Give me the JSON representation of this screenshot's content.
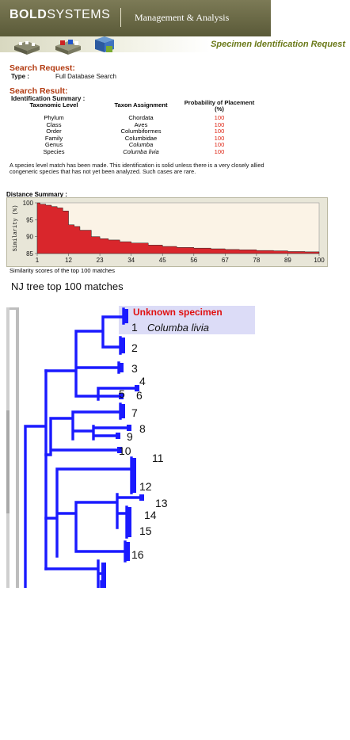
{
  "header": {
    "logo_bold": "BOLD",
    "logo_rest": "SYSTEMS",
    "tagline": "Management & Analysis",
    "request_title": "Specimen Identification Request"
  },
  "search_request": {
    "heading": "Search Request:",
    "type_label": "Type :",
    "type_value": "Full Database Search"
  },
  "search_result": {
    "heading": "Search Result:",
    "summary_label": "Identification Summary :",
    "columns": [
      "Taxonomic Level",
      "Taxon Assignment",
      "Probability of Placement (%)"
    ],
    "rows": [
      {
        "level": "Phylum",
        "taxon": "Chordata",
        "prob": "100"
      },
      {
        "level": "Class",
        "taxon": "Aves",
        "prob": "100"
      },
      {
        "level": "Order",
        "taxon": "Columbiformes",
        "prob": "100"
      },
      {
        "level": "Family",
        "taxon": "Columbidae",
        "prob": "100"
      },
      {
        "level": "Genus",
        "taxon": "Columba",
        "prob": "100"
      },
      {
        "level": "Species",
        "taxon": "Columba livia",
        "prob": "100"
      }
    ],
    "note": "A species level match has been made. This identification is solid unless there is a very closely allied congeneric species that has not yet been analyzed. Such cases are rare."
  },
  "distance_summary": {
    "title": "Distance Summary :",
    "caption": "Similarity scores of the top 100 matches"
  },
  "chart_data": {
    "type": "area",
    "ylabel": "Similarity (%)",
    "ylim": [
      85,
      100
    ],
    "yticks": [
      "100",
      "95",
      "90",
      "85"
    ],
    "xticks": [
      "1",
      "12",
      "23",
      "34",
      "45",
      "56",
      "67",
      "78",
      "89",
      "100"
    ],
    "x": [
      1,
      2,
      4,
      6,
      8,
      10,
      12,
      14,
      16,
      20,
      23,
      26,
      30,
      34,
      40,
      45,
      50,
      56,
      62,
      67,
      72,
      78,
      84,
      89,
      95,
      100
    ],
    "values": [
      100,
      99.6,
      99.3,
      98.9,
      98.5,
      97.6,
      93.5,
      93.0,
      91.9,
      90.0,
      89.4,
      89.0,
      88.5,
      88.1,
      87.5,
      87.1,
      86.8,
      86.6,
      86.4,
      86.2,
      86.1,
      85.9,
      85.8,
      85.6,
      85.5,
      85.3
    ],
    "colors": {
      "fill": "#d9262c",
      "plot_bg": "#fbf3e6",
      "box_bg": "#e8e6d8"
    }
  },
  "tree": {
    "title": "NJ tree top 100 matches",
    "unknown_label": "Unknown specimen",
    "first_species": "Columba livia",
    "numbers": [
      "1",
      "2",
      "3",
      "4",
      "5",
      "6",
      "7",
      "8",
      "9",
      "10",
      "11",
      "12",
      "13",
      "14",
      "15",
      "16"
    ],
    "colors": {
      "branch": "#1a1aff",
      "highlight_bg": "#dcdcf7",
      "unknown": "#e01010",
      "scale": "#bbbbbb"
    }
  }
}
